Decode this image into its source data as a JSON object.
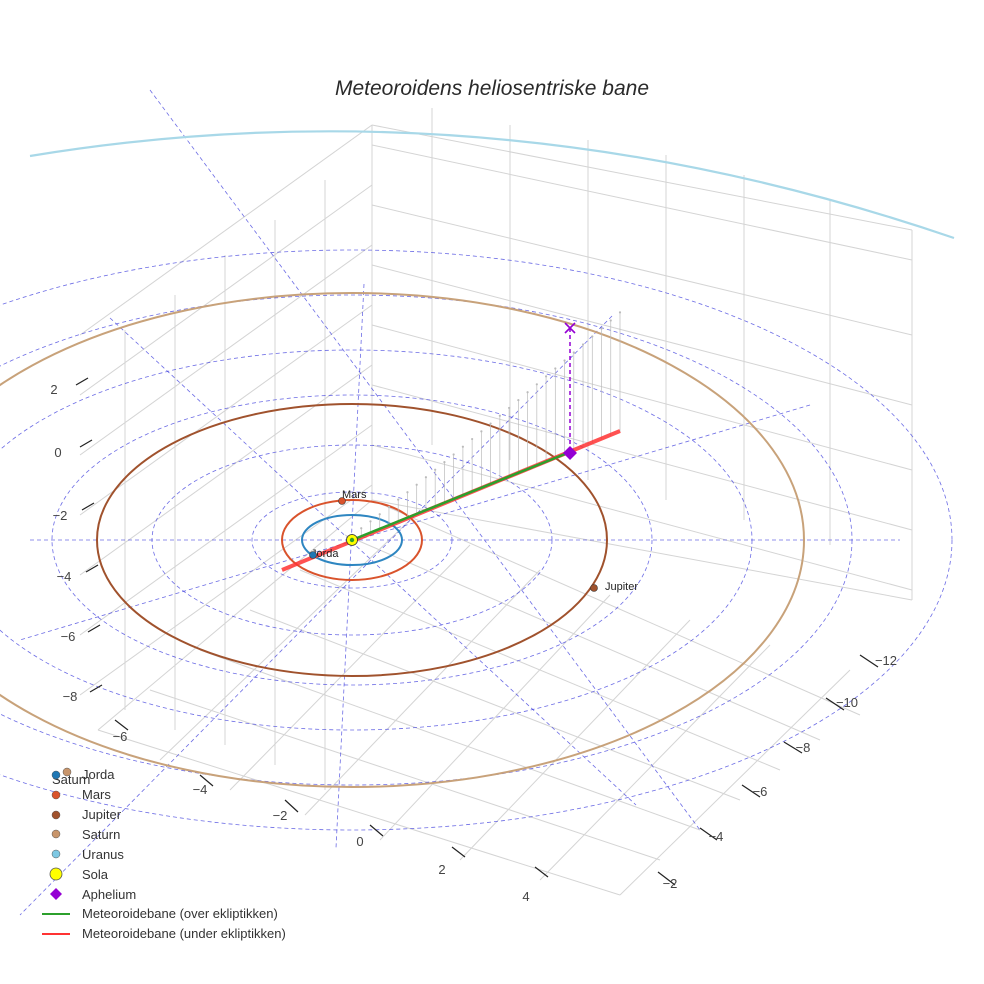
{
  "chart_data": {
    "type": "scatter3d",
    "title": "Meteoroidens heliosentriske bane",
    "axes": {
      "x_ticks": [
        "−2",
        "−4",
        "−6",
        "−8",
        "−10",
        "−12"
      ],
      "y_ticks": [
        "−6",
        "−4",
        "−2",
        "0",
        "2",
        "4"
      ],
      "z_ticks": [
        "2",
        "0",
        "−2",
        "−4",
        "−6",
        "−8"
      ]
    },
    "orbits": [
      {
        "name": "Jorda",
        "color": "#2e86c1",
        "radius_au": 1.0
      },
      {
        "name": "Mars",
        "color": "#d9532c",
        "radius_au": 1.52
      },
      {
        "name": "Jupiter",
        "color": "#a0522d",
        "radius_au": 5.2
      },
      {
        "name": "Saturn",
        "color": "#c8a27a",
        "radius_au": 9.58
      },
      {
        "name": "Uranus",
        "color": "#a8d8e8",
        "radius_au": 19.2
      }
    ],
    "point_labels": {
      "mars": "Mars",
      "jorda": "Jorda",
      "jupiter": "Jupiter"
    },
    "legend": [
      {
        "key": "jorda",
        "label": "Jorda",
        "color": "#1f77b4",
        "marker": "circle"
      },
      {
        "key": "mars",
        "label": "Mars",
        "color": "#d9532c",
        "marker": "circle"
      },
      {
        "key": "jupiter",
        "label": "Jupiter",
        "color": "#a0522d",
        "marker": "circle"
      },
      {
        "key": "saturn",
        "label": "Saturn",
        "color": "#c8956b",
        "marker": "circle"
      },
      {
        "key": "uranus",
        "label": "Uranus",
        "color": "#7ec8e3",
        "marker": "circle"
      },
      {
        "key": "sola",
        "label": "Sola",
        "color": "#ffff00",
        "marker": "circle-large"
      },
      {
        "key": "aphelium",
        "label": "Aphelium",
        "color": "#9400d3",
        "marker": "diamond"
      },
      {
        "key": "over",
        "label": "Meteoroidebane (over ekliptikken)",
        "color": "#2ca02c",
        "marker": "line"
      },
      {
        "key": "under",
        "label": "Meteoroidebane (under ekliptikken)",
        "color": "#ff3333",
        "marker": "line"
      }
    ],
    "legend_overlap_label": "Saturn",
    "colors": {
      "grid": "#d4d4d4",
      "reference": "#3b3bdc",
      "stem": "#bbbbbb",
      "aphelium": "#9400d3",
      "sun": "#ffff00"
    }
  }
}
